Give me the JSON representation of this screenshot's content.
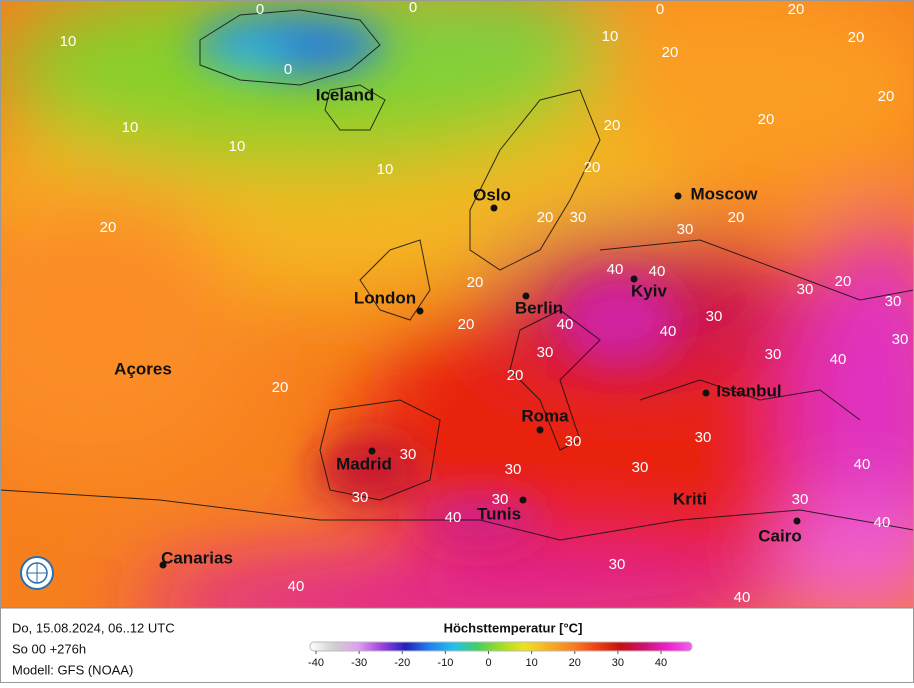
{
  "map": {
    "cities": [
      "Iceland",
      "Oslo",
      "Moscow",
      "London",
      "Berlin",
      "Kyiv",
      "Açores",
      "Istanbul",
      "Roma",
      "Madrid",
      "Tunis",
      "Kriti",
      "Canarias",
      "Cairo"
    ],
    "contour_labels": [
      0,
      0,
      0,
      0,
      10,
      10,
      20,
      20,
      20,
      20,
      10,
      10,
      10,
      20,
      20,
      20,
      20,
      20,
      30,
      30,
      20,
      40,
      40,
      20,
      20,
      30,
      30,
      20,
      40,
      40,
      30,
      30,
      20,
      30,
      40,
      20,
      30,
      30,
      30,
      30,
      30,
      30,
      40,
      30,
      30,
      40,
      30,
      40,
      40,
      30,
      40
    ]
  },
  "footer": {
    "run": "Do, 15.08.2024, 06..12 UTC",
    "lead": "So 00 +276h",
    "model": "Modell: GFS (NOAA)"
  },
  "legend": {
    "title": "Höchsttemperatur [°C]",
    "ticks": [
      -40,
      -30,
      -20,
      -10,
      0,
      10,
      20,
      30,
      40
    ],
    "colors": [
      "#ffffff",
      "#d0d0d0",
      "#e0a0f0",
      "#a040e0",
      "#2020c0",
      "#2080f0",
      "#20c0f0",
      "#40d060",
      "#a0e020",
      "#f0e020",
      "#f8b020",
      "#f88020",
      "#f04010",
      "#c81010",
      "#d01070",
      "#f020d0",
      "#f060f0"
    ]
  }
}
